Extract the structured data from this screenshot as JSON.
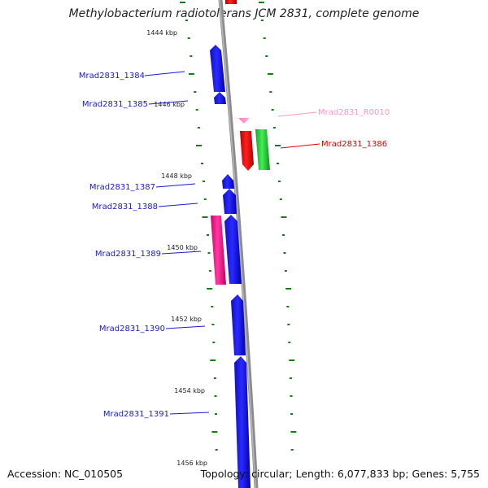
{
  "title": "Methylobacterium radiotolerans JCM 2831, complete genome",
  "footer": {
    "accession": "Accession: NC_010505",
    "stats": "Topology: circular; Length: 6,077,833 bp; Genes: 5,755"
  },
  "colors": {
    "forward_cds": "#0000ee",
    "reverse_cds_red": "#ee0000",
    "reverse_cds_green": "#22cc33",
    "pink_cds": "#ff1493",
    "rna": "#ff99cc",
    "tick": "#1a7a1a",
    "backbone": "#8c8c8c"
  },
  "scale": {
    "unit": "kbp",
    "labels": [
      "1444 kbp",
      "1446 kbp",
      "1448 kbp",
      "1450 kbp",
      "1452 kbp",
      "1454 kbp",
      "1456 kbp"
    ]
  },
  "features": [
    {
      "name": "Mrad2831_1384",
      "color": "#1a1ad0"
    },
    {
      "name": "Mrad2831_1385",
      "color": "#1a1ad0"
    },
    {
      "name": "Mrad2831_R0010",
      "color": "#f39ac8"
    },
    {
      "name": "Mrad2831_1386",
      "color": "#dd0000"
    },
    {
      "name": "Mrad2831_1387",
      "color": "#1a1ad0"
    },
    {
      "name": "Mrad2831_1388",
      "color": "#1a1ad0"
    },
    {
      "name": "Mrad2831_1389",
      "color": "#1a1ad0"
    },
    {
      "name": "Mrad2831_1390",
      "color": "#1a1ad0"
    },
    {
      "name": "Mrad2831_1391",
      "color": "#1a1ad0"
    }
  ]
}
